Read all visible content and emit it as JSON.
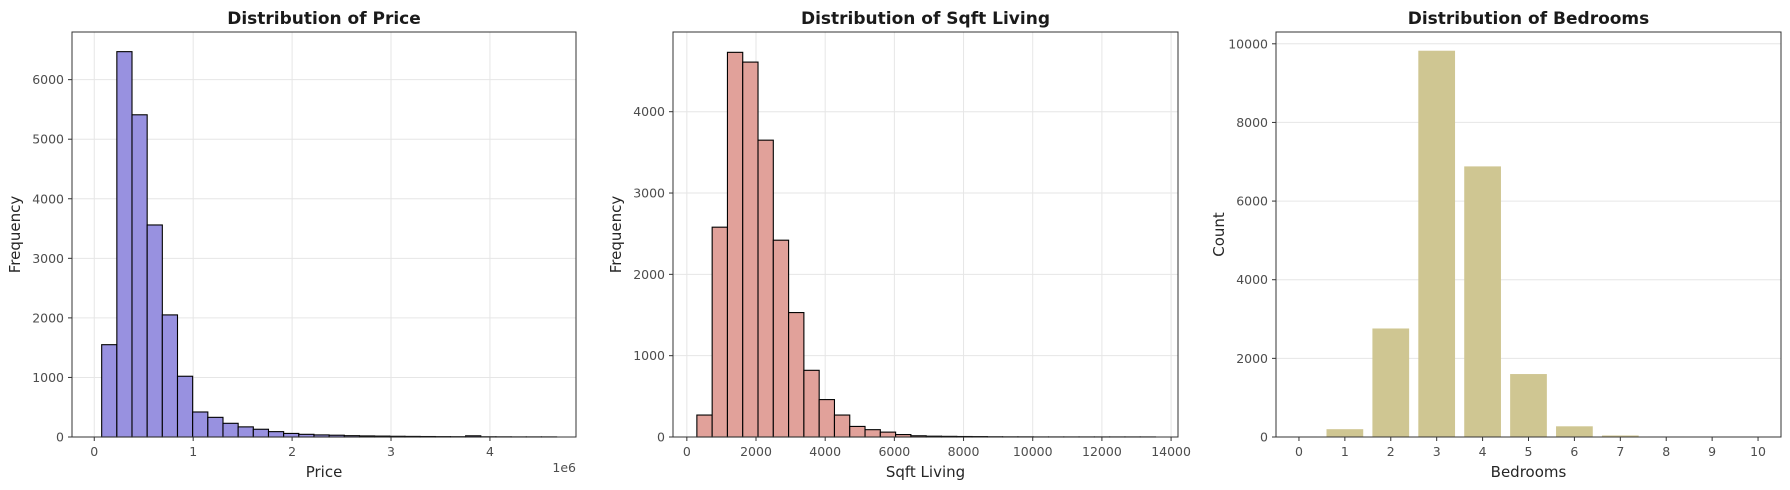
{
  "chart_data": [
    {
      "type": "bar",
      "title": "Distribution of Price",
      "xlabel": "Price",
      "ylabel": "Frequency",
      "x_offset_label": "1e6",
      "color": "#9891e0",
      "edge_color": "#000000",
      "xlim": [
        -0.225,
        4.87
      ],
      "ylim": [
        0,
        6800
      ],
      "x_ticks": [
        0,
        1,
        2,
        3,
        4
      ],
      "x_tick_labels": [
        "0",
        "1",
        "2",
        "3",
        "4"
      ],
      "y_ticks": [
        0,
        1000,
        2000,
        3000,
        4000,
        5000,
        6000
      ],
      "y_tick_labels": [
        "0",
        "1000",
        "2000",
        "3000",
        "4000",
        "5000",
        "6000"
      ],
      "bin_start": 0.075,
      "bin_width": 0.1533,
      "values": [
        1550,
        6470,
        5410,
        3560,
        2050,
        1020,
        420,
        330,
        230,
        170,
        130,
        90,
        60,
        45,
        35,
        30,
        22,
        18,
        15,
        12,
        10,
        8,
        6,
        5,
        20,
        4,
        3,
        2,
        2,
        2
      ]
    },
    {
      "type": "bar",
      "title": "Distribution of Sqft Living",
      "xlabel": "Sqft Living",
      "ylabel": "Frequency",
      "color": "#e1a19a",
      "edge_color": "#000000",
      "xlim": [
        -400,
        14200
      ],
      "ylim": [
        0,
        4980
      ],
      "x_ticks": [
        0,
        2000,
        4000,
        6000,
        8000,
        10000,
        12000,
        14000
      ],
      "x_tick_labels": [
        "0",
        "2000",
        "4000",
        "6000",
        "8000",
        "10000",
        "12000",
        "14000"
      ],
      "y_ticks": [
        0,
        1000,
        2000,
        3000,
        4000
      ],
      "y_tick_labels": [
        "0",
        "1000",
        "2000",
        "3000",
        "4000"
      ],
      "bin_start": 290,
      "bin_width": 442,
      "values": [
        270,
        2580,
        4730,
        4610,
        3650,
        2420,
        1530,
        820,
        460,
        270,
        130,
        90,
        60,
        30,
        15,
        10,
        8,
        6,
        5,
        3,
        2,
        2,
        1,
        1,
        1,
        1,
        1,
        1,
        1,
        1
      ]
    },
    {
      "type": "bar",
      "title": "Distribution of Bedrooms",
      "xlabel": "Bedrooms",
      "ylabel": "Count",
      "color": "#cfc692",
      "xlim": [
        -0.5,
        10.5
      ],
      "ylim": [
        0,
        10300
      ],
      "categories": [
        "0",
        "1",
        "2",
        "3",
        "4",
        "5",
        "6",
        "7",
        "8",
        "9",
        "10"
      ],
      "values": [
        13,
        199,
        2760,
        9824,
        6882,
        1601,
        272,
        38,
        13,
        6,
        3
      ],
      "y_ticks": [
        0,
        2000,
        4000,
        6000,
        8000,
        10000
      ],
      "y_tick_labels": [
        "0",
        "2000",
        "4000",
        "6000",
        "8000",
        "10000"
      ]
    }
  ]
}
